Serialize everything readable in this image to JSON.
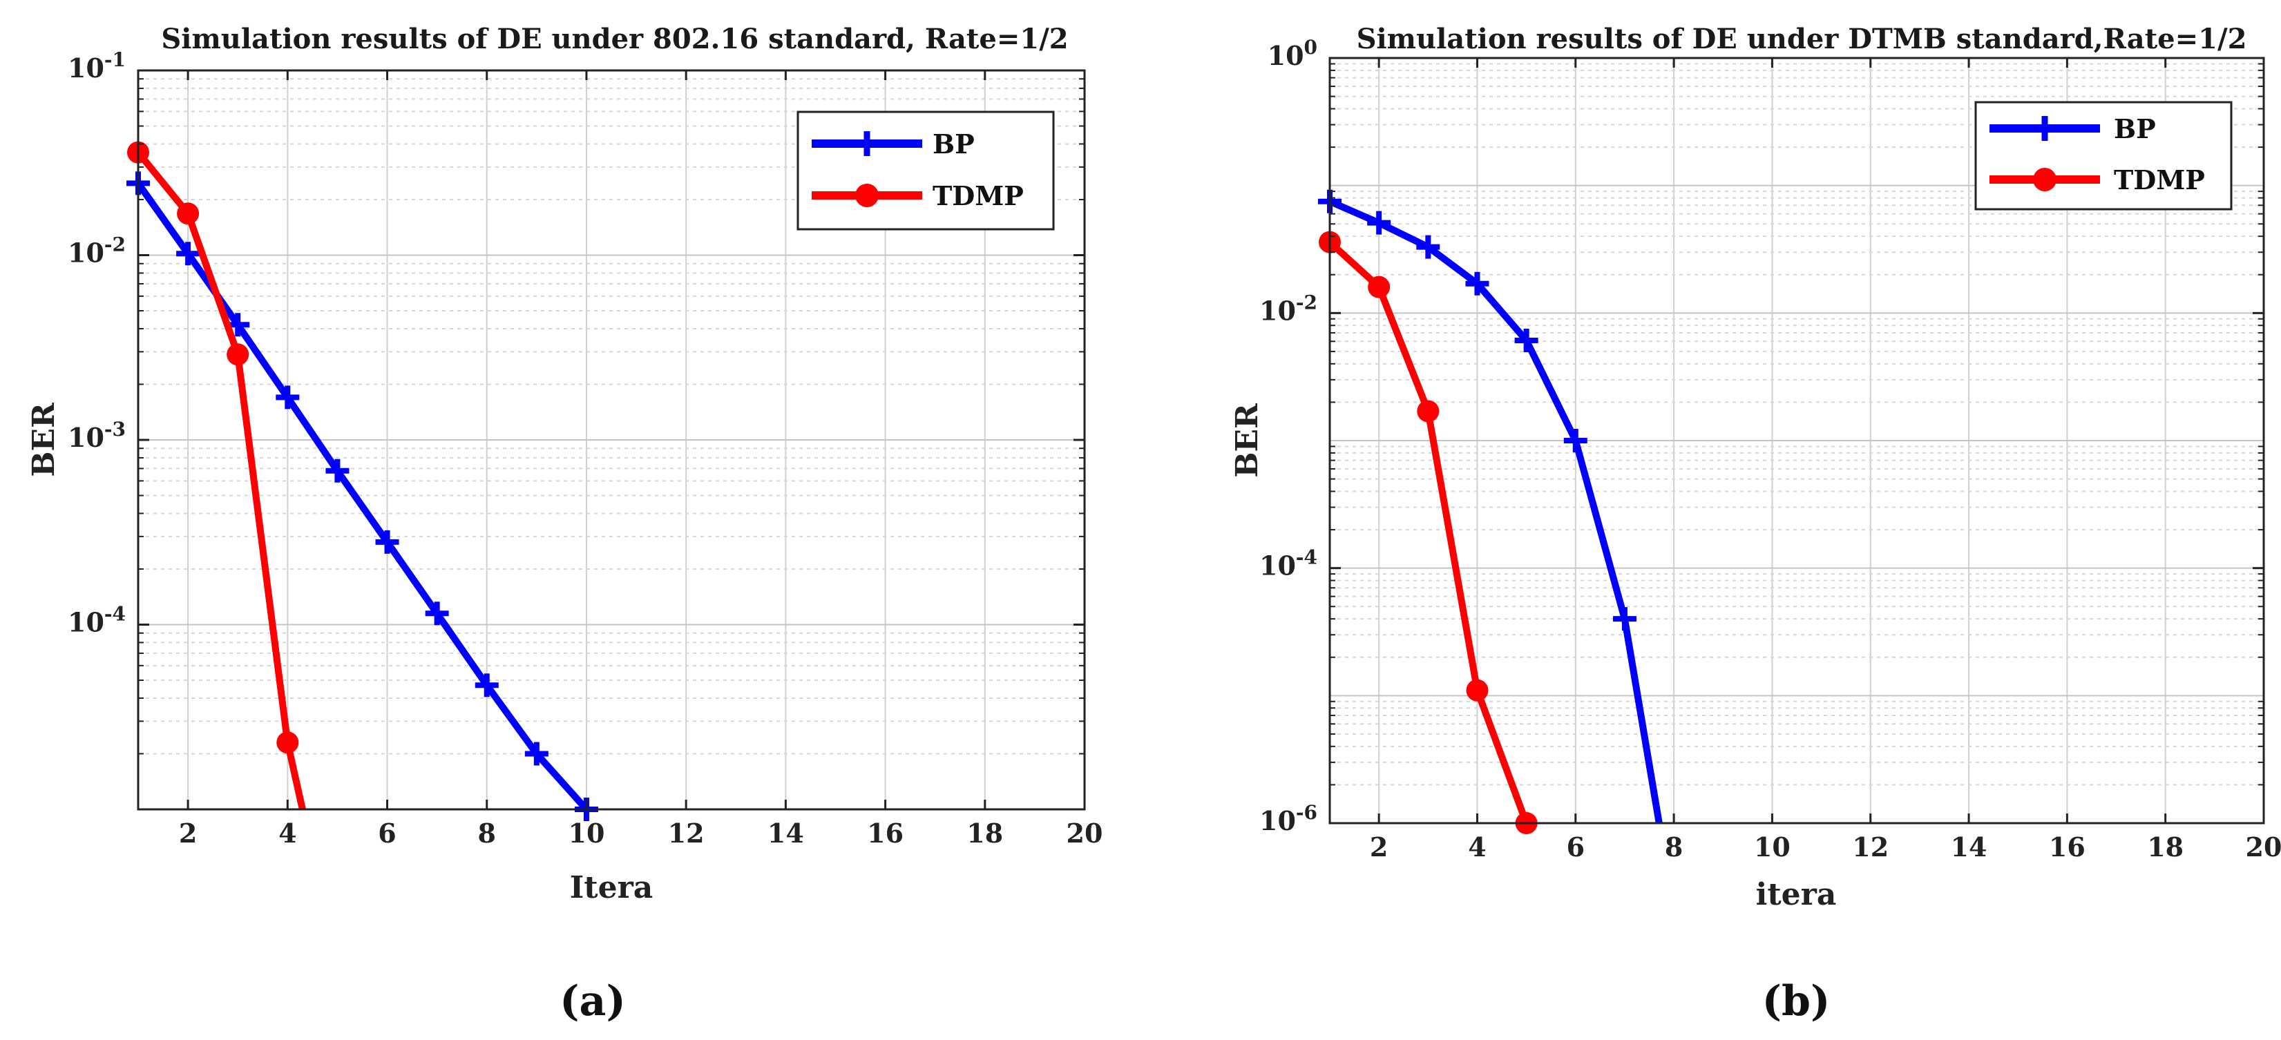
{
  "chart_data": [
    {
      "type": "line",
      "scale_y": "log",
      "title": "Simulation results of DE under 802.16 standard, Rate=1/2",
      "xlabel": "Itera",
      "ylabel": "BER",
      "xlim": [
        1,
        20
      ],
      "ylim_exp": [
        -5,
        -1
      ],
      "x_ticks": [
        2,
        4,
        6,
        8,
        10,
        12,
        14,
        16,
        18,
        20
      ],
      "y_ticks": [
        {
          "base": "10",
          "exp": "-1",
          "value": 0.1
        },
        {
          "base": "10",
          "exp": "-2",
          "value": 0.01
        },
        {
          "base": "10",
          "exp": "-3",
          "value": 0.001
        },
        {
          "base": "10",
          "exp": "-4",
          "value": 0.0001
        }
      ],
      "grid": true,
      "legend_position": "top-right",
      "caption": "(a)",
      "series": [
        {
          "name": "BP",
          "color": "#0000ff",
          "marker": "plus",
          "x": [
            1,
            2,
            3,
            4,
            5,
            6,
            7,
            8,
            9,
            10
          ],
          "y": [
            0.0245,
            0.0102,
            0.0042,
            0.0017,
            0.00068,
            0.00028,
            0.000115,
            4.7e-05,
            2e-05,
            1e-05
          ]
        },
        {
          "name": "TDMP",
          "color": "#ff0000",
          "marker": "circle",
          "x": [
            1,
            2,
            3,
            4,
            4.3
          ],
          "y": [
            0.036,
            0.0168,
            0.0029,
            2.3e-05,
            1e-05
          ]
        }
      ]
    },
    {
      "type": "line",
      "scale_y": "log",
      "title": "Simulation results of DE under DTMB standard,Rate=1/2",
      "xlabel": "itera",
      "ylabel": "BER",
      "xlim": [
        1,
        20
      ],
      "ylim_exp": [
        -6,
        0
      ],
      "x_ticks": [
        2,
        4,
        6,
        8,
        10,
        12,
        14,
        16,
        18,
        20
      ],
      "y_ticks": [
        {
          "base": "10",
          "exp": "0",
          "value": 1
        },
        {
          "base": "10",
          "exp": "-2",
          "value": 0.01
        },
        {
          "base": "10",
          "exp": "-4",
          "value": 0.0001
        },
        {
          "base": "10",
          "exp": "-6",
          "value": 1e-06
        }
      ],
      "grid": true,
      "legend_position": "top-right",
      "caption": "(b)",
      "series": [
        {
          "name": "BP",
          "color": "#0000ff",
          "marker": "plus",
          "x": [
            1,
            2,
            3,
            4,
            5,
            6,
            7,
            7.7
          ],
          "y": [
            0.075,
            0.051,
            0.033,
            0.017,
            0.0061,
            0.001,
            4e-05,
            1e-06
          ]
        },
        {
          "name": "TDMP",
          "color": "#ff0000",
          "marker": "circle",
          "x": [
            1,
            2,
            3,
            4,
            5
          ],
          "y": [
            0.036,
            0.016,
            0.0017,
            1.1e-05,
            1e-06
          ]
        }
      ]
    }
  ]
}
